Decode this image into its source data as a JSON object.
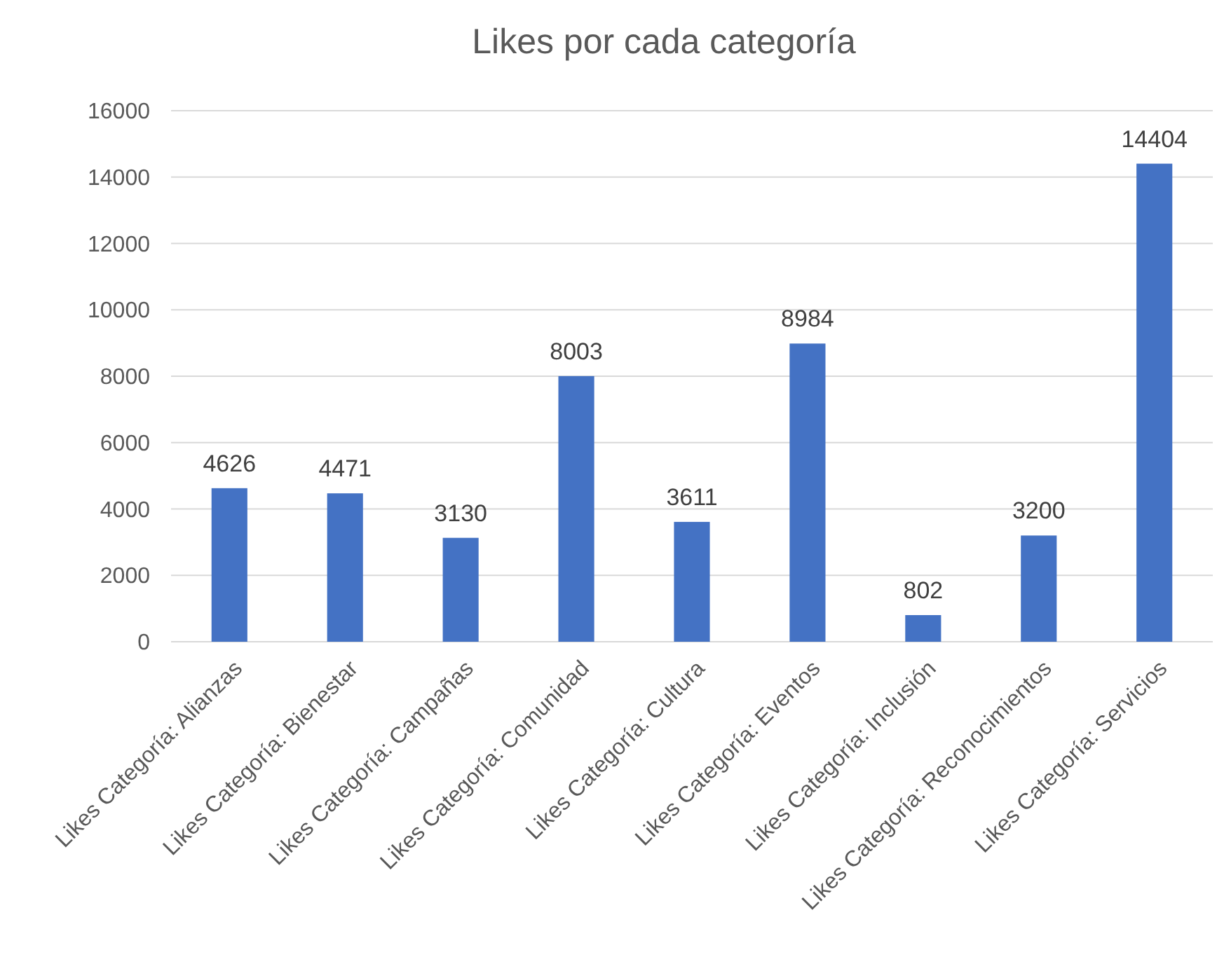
{
  "chart_data": {
    "type": "bar",
    "title": "Likes por cada categoría",
    "categories": [
      "Likes Categoría: Alianzas",
      "Likes Categoría: Bienestar",
      "Likes Categoría: Campañas",
      "Likes Categoría: Comunidad",
      "Likes Categoría: Cultura",
      "Likes Categoría: Eventos",
      "Likes Categoría: Inclusión",
      "Likes Categoría: Reconocimientos",
      "Likes Categoría: Servicios"
    ],
    "values": [
      4626,
      4471,
      3130,
      8003,
      3611,
      8984,
      802,
      3200,
      14404
    ],
    "color": "#4472c4",
    "data_labels": true,
    "ylim": [
      0,
      16000
    ],
    "yticks": [
      0,
      2000,
      4000,
      6000,
      8000,
      10000,
      12000,
      14000,
      16000
    ],
    "grid": "y"
  }
}
